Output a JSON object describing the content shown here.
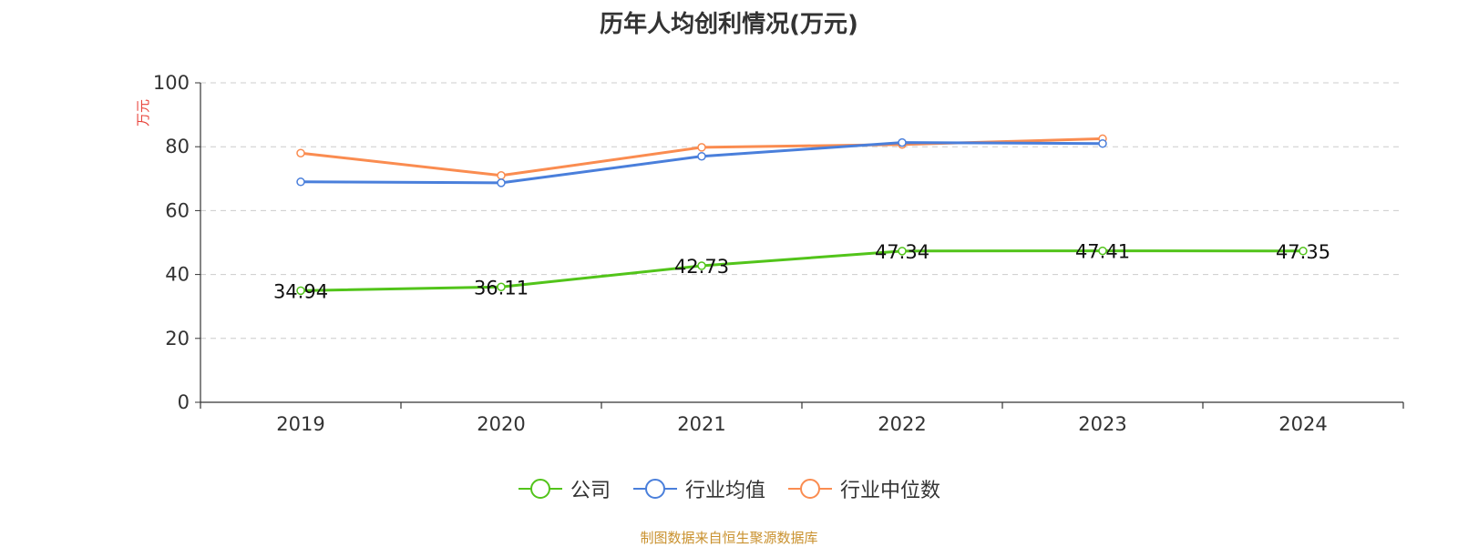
{
  "colors": {
    "company": "#52c41a",
    "industry_avg": "#4a7fdb",
    "industry_median": "#fa8c50",
    "unit_label": "#e8453c",
    "source": "#c9912e",
    "axis": "#333333",
    "grid": "#cccccc"
  },
  "legend": {
    "items": [
      {
        "key": "company",
        "label": "公司"
      },
      {
        "key": "industry_avg",
        "label": "行业均值"
      },
      {
        "key": "industry_median",
        "label": "行业中位数"
      }
    ]
  },
  "footer": {
    "source": "制图数据来自恒生聚源数据库"
  },
  "chart_data": {
    "type": "line",
    "title": "历年人均创利情况(万元)",
    "ylabel": "万元",
    "xlabel": "",
    "categories": [
      "2019",
      "2020",
      "2021",
      "2022",
      "2023",
      "2024"
    ],
    "ylim": [
      0,
      100
    ],
    "yticks": [
      0,
      20,
      40,
      60,
      80,
      100
    ],
    "grid": true,
    "legend_position": "bottom",
    "series": [
      {
        "name": "公司",
        "key": "company",
        "values": [
          34.94,
          36.11,
          42.73,
          47.34,
          47.41,
          47.35
        ],
        "labels": [
          "34.94",
          "36.11",
          "42.73",
          "47.34",
          "47.41",
          "47.35"
        ]
      },
      {
        "name": "行业均值",
        "key": "industry_avg",
        "values": [
          69,
          68.7,
          77,
          81.3,
          81,
          null
        ]
      },
      {
        "name": "行业中位数",
        "key": "industry_median",
        "values": [
          78,
          71,
          79.8,
          80.7,
          82.5,
          null
        ]
      }
    ]
  }
}
